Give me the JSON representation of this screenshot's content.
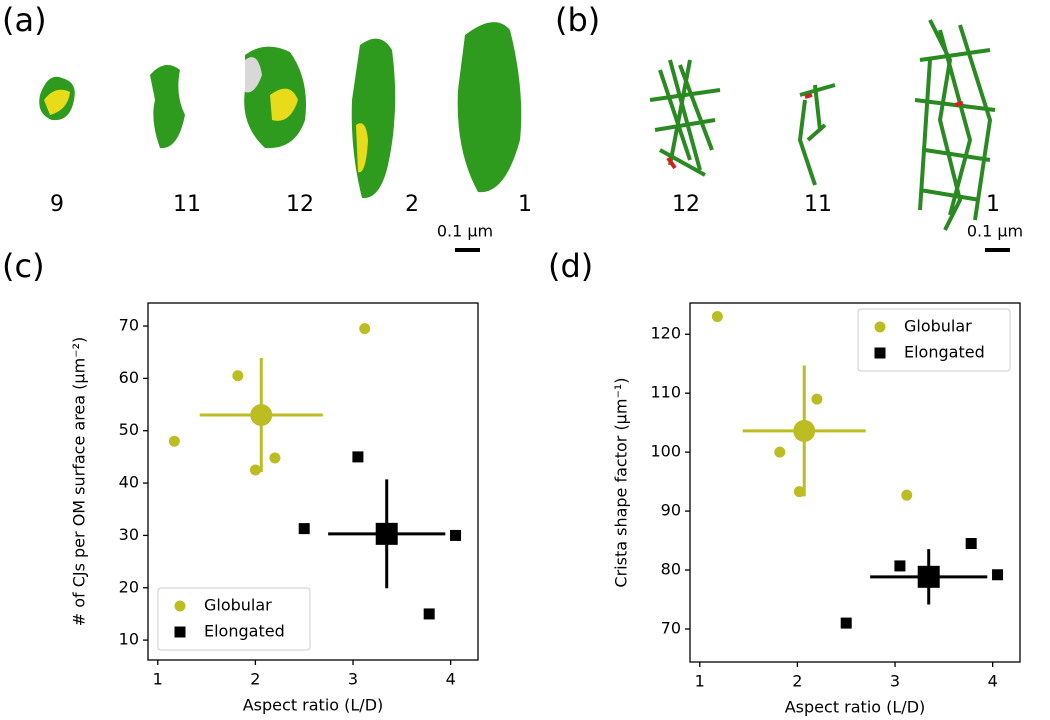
{
  "panels": {
    "a": {
      "label": "(a)",
      "ids": [
        "9",
        "11",
        "12",
        "2",
        "1"
      ],
      "scale_bar": "0.1 μm"
    },
    "b": {
      "label": "(b)",
      "ids": [
        "12",
        "11",
        "1"
      ],
      "scale_bar": "0.1 μm"
    }
  },
  "chart_data": [
    {
      "type": "scatter",
      "panel_label": "(c)",
      "xlabel": "Aspect ratio (L/D)",
      "ylabel": "# of CJs per OM surface area (μm⁻²)",
      "xlim": [
        0.9,
        4.28
      ],
      "ylim": [
        6.2,
        74.4
      ],
      "xticks": [
        1,
        2,
        3,
        4
      ],
      "yticks": [
        10,
        20,
        30,
        40,
        50,
        60,
        70
      ],
      "legend": "lower left",
      "series": [
        {
          "name": "Globular",
          "color": "#bcbd22",
          "marker": "circle",
          "x": [
            1.17,
            1.82,
            2.0,
            2.2,
            3.12
          ],
          "values": [
            48,
            60.5,
            42.5,
            44.8,
            69.5
          ],
          "mean": {
            "x": 2.06,
            "y": 53,
            "xerr": 0.63,
            "yerr": 10.9
          }
        },
        {
          "name": "Elongated",
          "color": "#000000",
          "marker": "square",
          "x": [
            2.5,
            3.05,
            3.78,
            4.05
          ],
          "values": [
            31.3,
            45,
            15,
            30
          ],
          "mean": {
            "x": 3.345,
            "y": 30.3,
            "xerr": 0.6,
            "yerr": 10.4
          }
        }
      ]
    },
    {
      "type": "scatter",
      "panel_label": "(d)",
      "xlabel": "Aspect ratio (L/D)",
      "ylabel": "Crista shape factor (μm⁻¹)",
      "xlim": [
        0.9,
        4.28
      ],
      "ylim": [
        64.4,
        125.3
      ],
      "xticks": [
        1,
        2,
        3,
        4
      ],
      "yticks": [
        70,
        80,
        90,
        100,
        110,
        120
      ],
      "legend": "upper right",
      "series": [
        {
          "name": "Globular",
          "color": "#bcbd22",
          "marker": "circle",
          "x": [
            1.18,
            1.82,
            2.02,
            2.2,
            3.12
          ],
          "values": [
            123,
            100,
            93.3,
            109,
            92.7
          ],
          "mean": {
            "x": 2.07,
            "y": 103.6,
            "xerr": 0.63,
            "yerr": 11.1
          }
        },
        {
          "name": "Elongated",
          "color": "#000000",
          "marker": "square",
          "x": [
            2.5,
            3.05,
            3.78,
            4.05
          ],
          "values": [
            71,
            80.7,
            84.5,
            79.2
          ],
          "mean": {
            "x": 3.345,
            "y": 78.85,
            "xerr": 0.6,
            "yerr": 4.7
          }
        }
      ]
    }
  ]
}
